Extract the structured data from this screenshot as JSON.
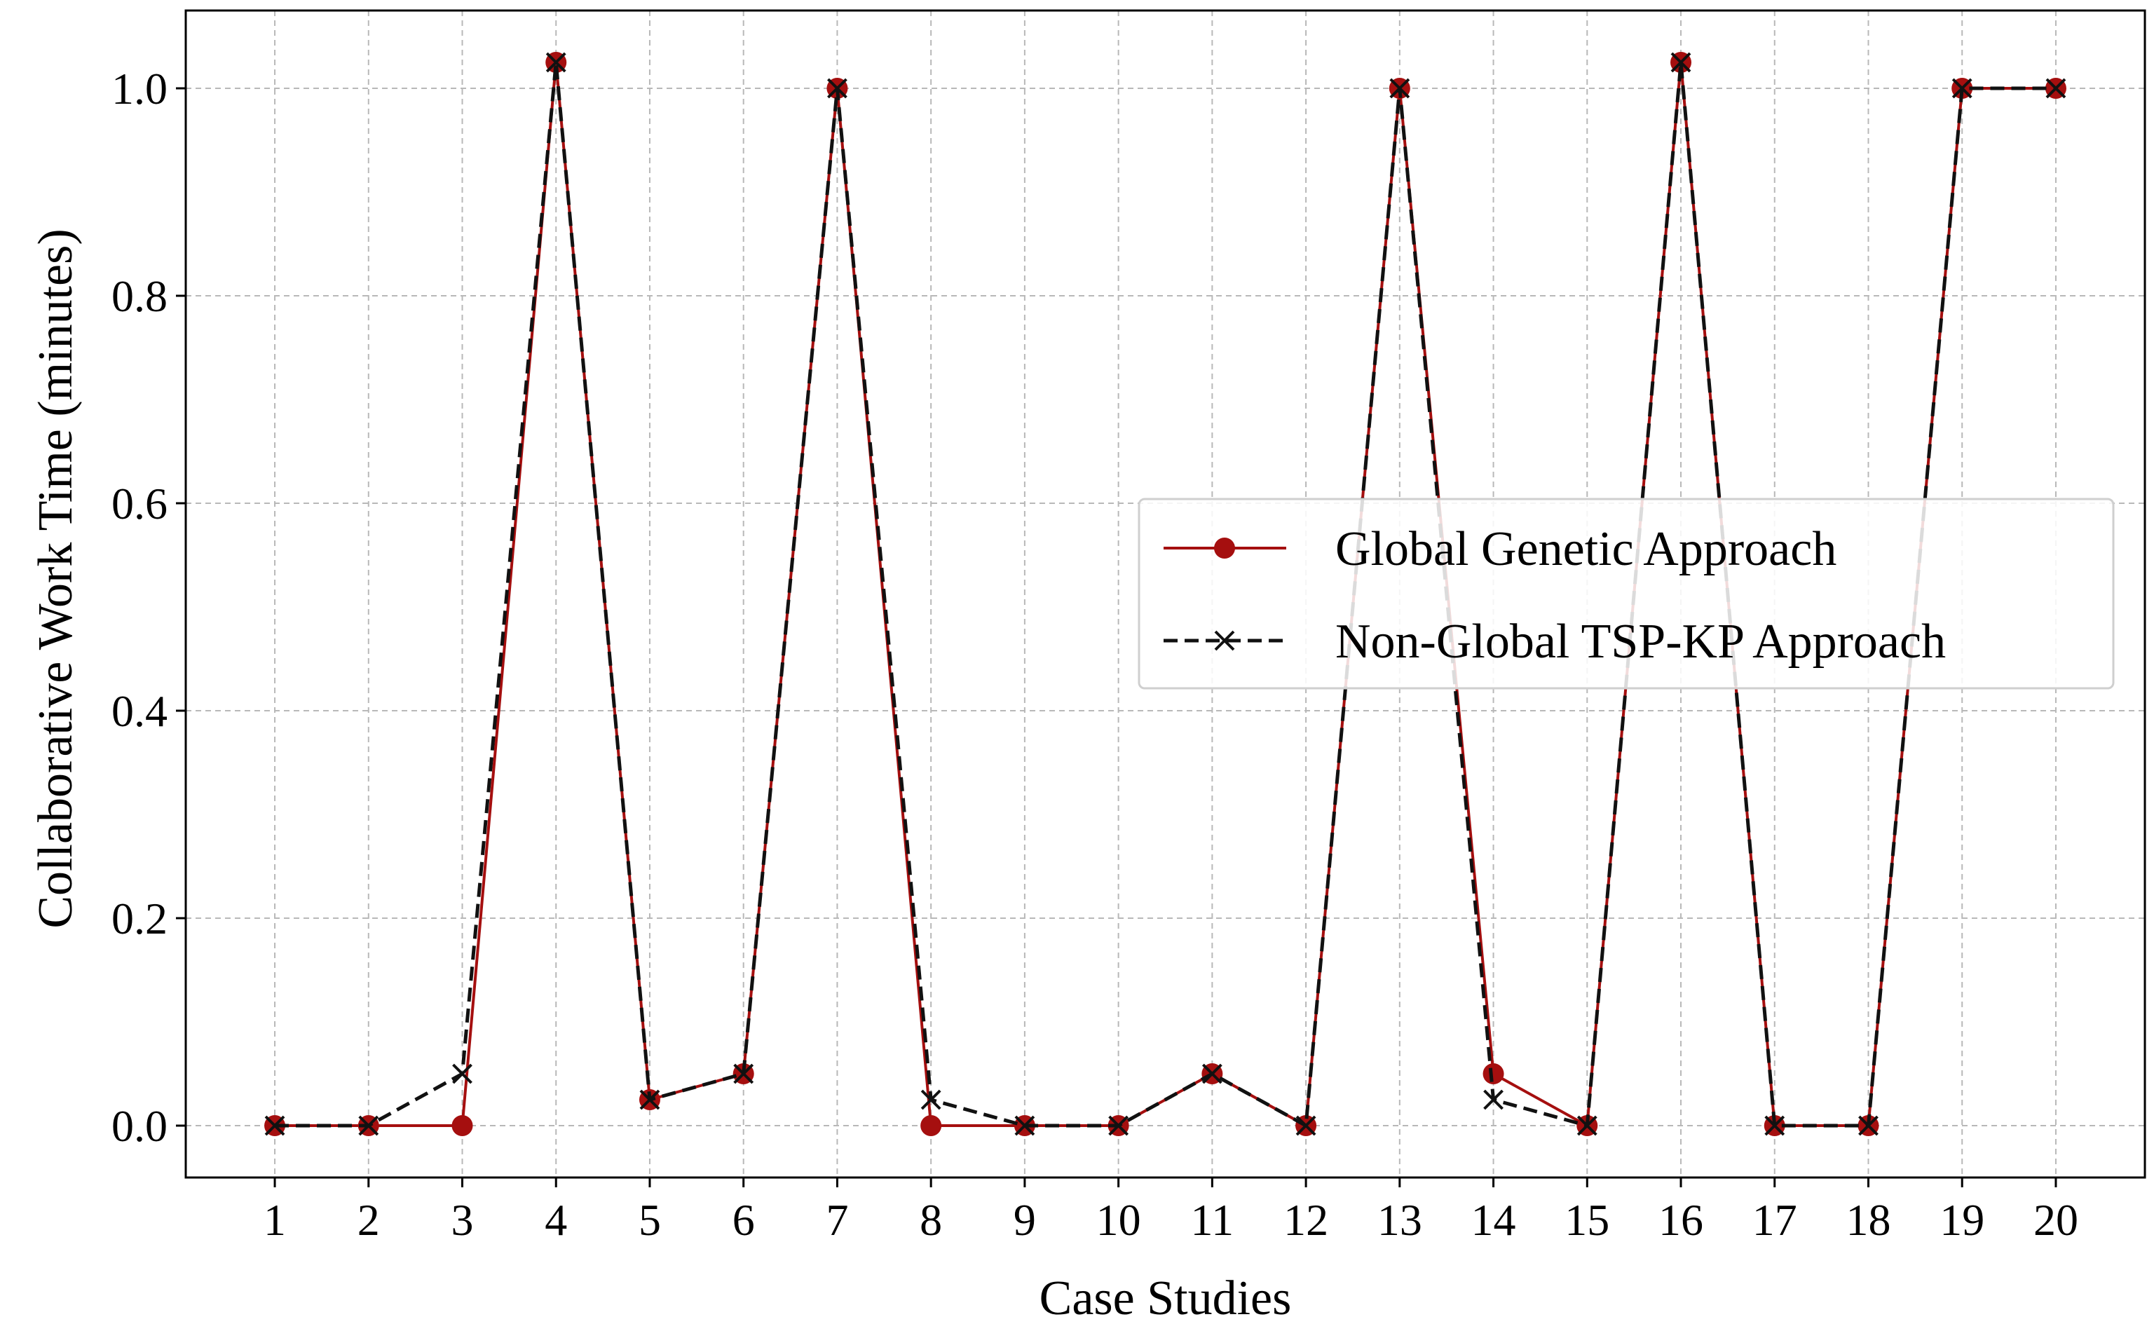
{
  "chart_data": {
    "type": "line",
    "title": "",
    "xlabel": "Case Studies",
    "ylabel": "Collaborative Work Time (minutes)",
    "x": [
      1,
      2,
      3,
      4,
      5,
      6,
      7,
      8,
      9,
      10,
      11,
      12,
      13,
      14,
      15,
      16,
      17,
      18,
      19,
      20
    ],
    "xlim": [
      0.05,
      20.95
    ],
    "ylim": [
      -0.05,
      1.075
    ],
    "yticks": [
      0.0,
      0.2,
      0.4,
      0.6,
      0.8,
      1.0
    ],
    "ytick_labels": [
      "0.0",
      "0.2",
      "0.4",
      "0.6",
      "0.8",
      "1.0"
    ],
    "grid": true,
    "legend_position": "center-right",
    "series": [
      {
        "name": "Global Genetic Approach",
        "color": "#a50f0f",
        "style": "solid",
        "marker": "circle",
        "values": [
          0.0,
          0.0,
          0.0,
          1.025,
          0.025,
          0.05,
          1.0,
          0.0,
          0.0,
          0.0,
          0.05,
          0.0,
          1.0,
          0.05,
          0.0,
          1.025,
          0.0,
          0.0,
          1.0,
          1.0
        ]
      },
      {
        "name": "Non-Global TSP-KP Approach",
        "color": "#111111",
        "style": "dashed",
        "marker": "x",
        "values": [
          0.0,
          0.0,
          0.05,
          1.025,
          0.025,
          0.05,
          1.0,
          0.025,
          0.0,
          0.0,
          0.05,
          0.0,
          1.0,
          0.025,
          0.0,
          1.025,
          0.0,
          0.0,
          1.0,
          1.0
        ]
      }
    ]
  }
}
